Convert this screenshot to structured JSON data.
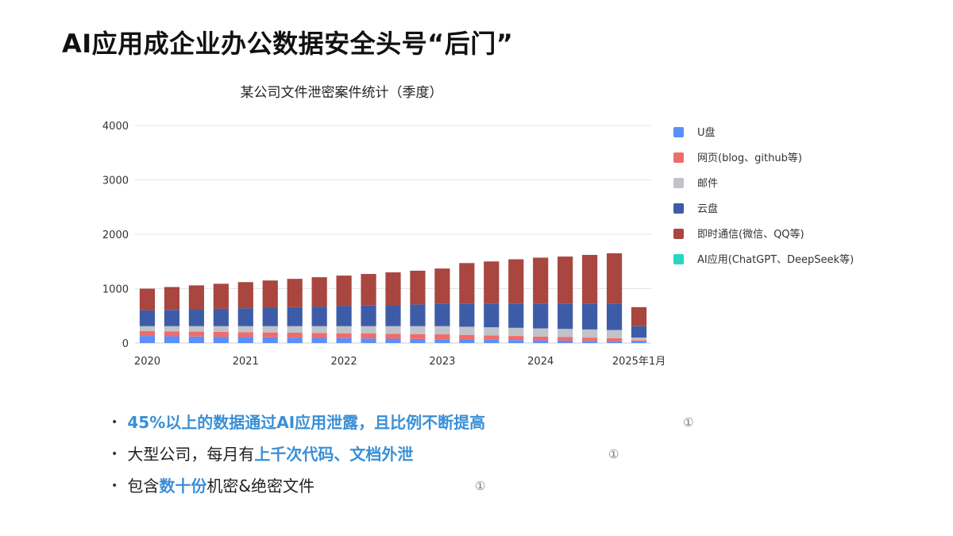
{
  "slide": {
    "title": "AI应用成企业办公数据安全头号“后门”"
  },
  "chart_data": {
    "type": "bar",
    "stacked": true,
    "title": "某公司文件泄密案件统计（季度）",
    "ylim": [
      0,
      4000
    ],
    "y_ticks": [
      0,
      1000,
      2000,
      3000,
      4000
    ],
    "x_tick_labels": [
      {
        "index": 0,
        "label": "2020"
      },
      {
        "index": 4,
        "label": "2021"
      },
      {
        "index": 8,
        "label": "2022"
      },
      {
        "index": 12,
        "label": "2023"
      },
      {
        "index": 16,
        "label": "2024"
      },
      {
        "index": 20,
        "label": "2025年1月"
      }
    ],
    "grid": "horizontal",
    "legend_position": "right",
    "series": [
      {
        "name": "U盘",
        "color": "#5b8ff9",
        "values": [
          130,
          125,
          120,
          115,
          110,
          105,
          100,
          95,
          90,
          85,
          80,
          75,
          70,
          65,
          60,
          55,
          50,
          45,
          40,
          35,
          30
        ]
      },
      {
        "name": "网页(blog、github等)",
        "color": "#f06b6b",
        "values": [
          90,
          90,
          90,
          90,
          90,
          90,
          90,
          90,
          90,
          90,
          90,
          90,
          90,
          85,
          80,
          75,
          70,
          65,
          60,
          55,
          20
        ]
      },
      {
        "name": "邮件",
        "color": "#c0c3c8",
        "values": [
          90,
          95,
          100,
          105,
          110,
          115,
          120,
          125,
          130,
          135,
          140,
          145,
          150,
          150,
          150,
          150,
          150,
          150,
          150,
          150,
          50
        ]
      },
      {
        "name": "云盘",
        "color": "#3d5ca8",
        "values": [
          290,
          300,
          310,
          320,
          330,
          340,
          350,
          360,
          370,
          380,
          390,
          400,
          410,
          420,
          430,
          440,
          450,
          460,
          470,
          480,
          210
        ]
      },
      {
        "name": "即时通信(微信、QQ等)",
        "color": "#a8463f",
        "values": [
          400,
          420,
          440,
          460,
          480,
          500,
          520,
          540,
          560,
          580,
          600,
          620,
          650,
          750,
          780,
          820,
          850,
          870,
          900,
          930,
          350
        ]
      },
      {
        "name": "AI应用(ChatGPT、DeepSeek等)",
        "color": "#27d6c0",
        "values": [
          0,
          0,
          0,
          0,
          0,
          0,
          0,
          0,
          0,
          0,
          0,
          0,
          0,
          0,
          0,
          0,
          0,
          0,
          0,
          0,
          0
        ]
      }
    ]
  },
  "bullets": [
    {
      "parts": [
        {
          "text": "45%以上的数据通过AI应用泄露，且比例不断提高",
          "hl": true
        }
      ],
      "cite": "①"
    },
    {
      "parts": [
        {
          "text": "大型公司，每月有",
          "hl": false
        },
        {
          "text": "上千次代码、文档外泄",
          "hl": true
        }
      ],
      "cite": "①"
    },
    {
      "parts": [
        {
          "text": "包含",
          "hl": false
        },
        {
          "text": "数十份",
          "hl": true
        },
        {
          "text": "机密&绝密文件",
          "hl": false
        }
      ],
      "cite": "①"
    }
  ],
  "bullet_marker": "•"
}
